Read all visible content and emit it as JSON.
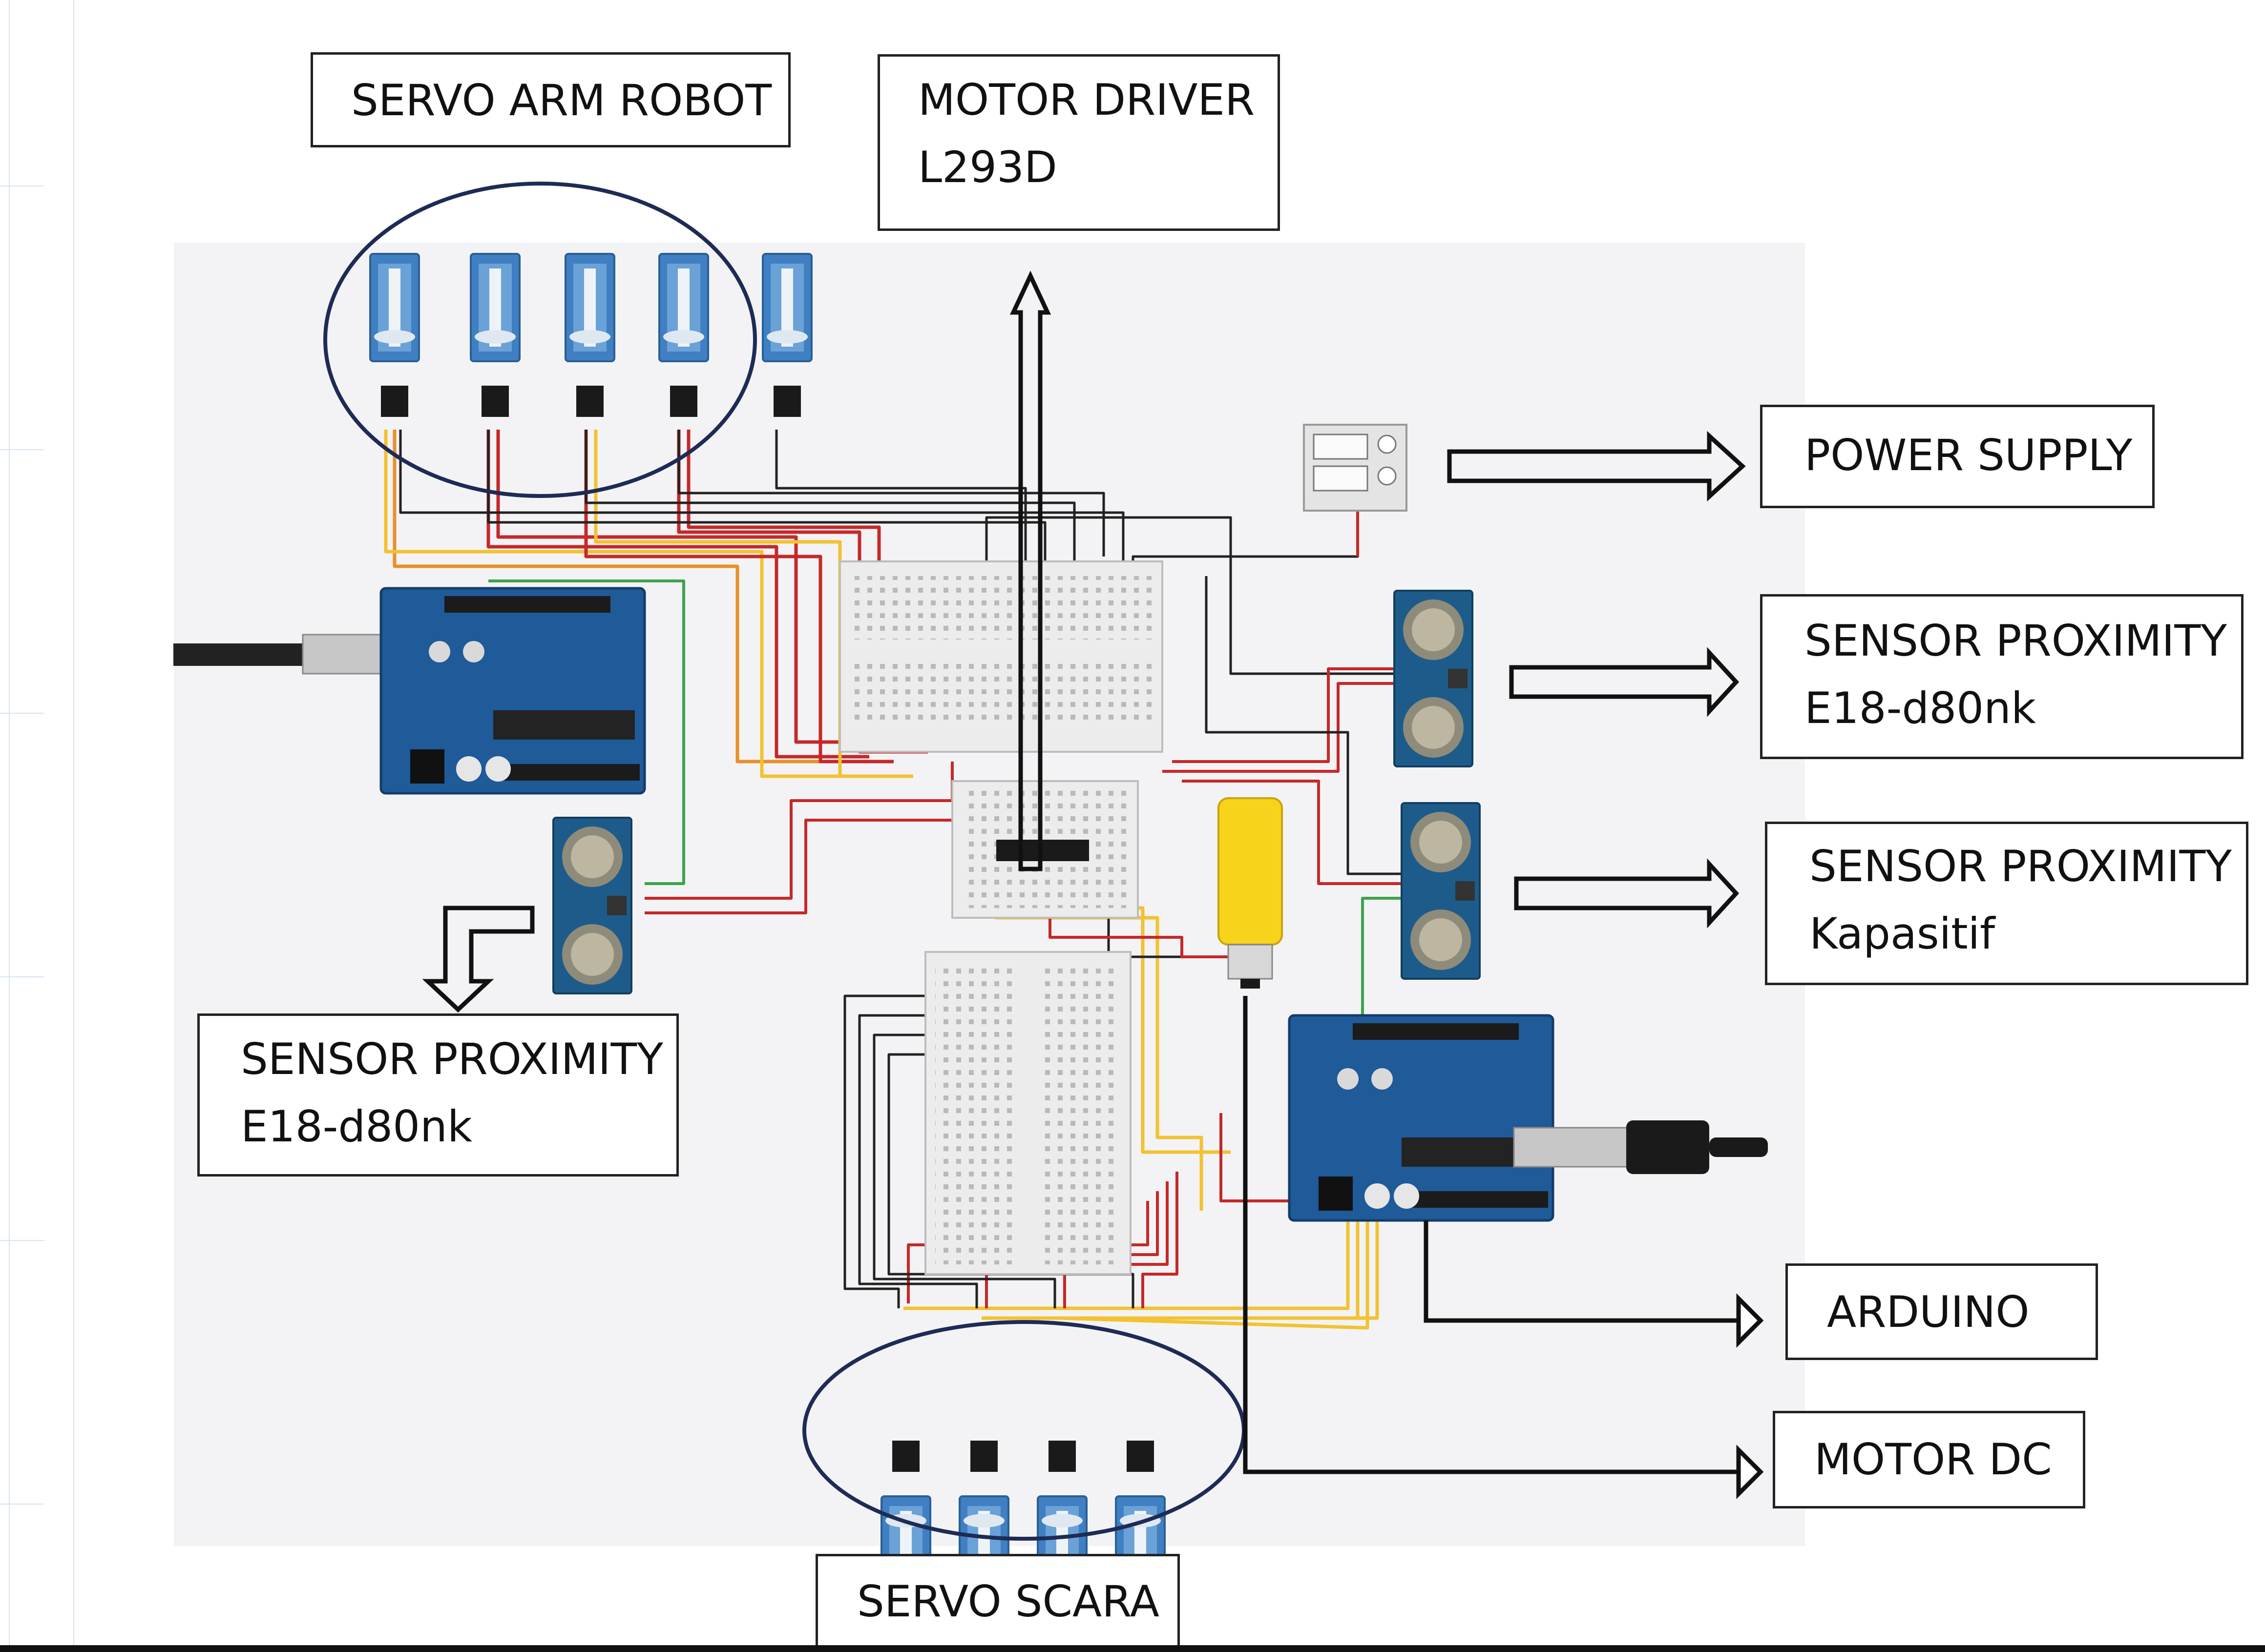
{
  "labels": {
    "servo_arm_robot": "SERVO ARM ROBOT",
    "motor_driver": [
      "MOTOR DRIVER",
      "L293D"
    ],
    "power_supply": "POWER SUPPLY",
    "sensor_proximity_right": [
      "SENSOR PROXIMITY",
      "E18-d80nk"
    ],
    "sensor_proximity_kapasitif": [
      "SENSOR PROXIMITY",
      "Kapasitif"
    ],
    "sensor_proximity_left": [
      "SENSOR PROXIMITY",
      "E18-d80nk"
    ],
    "arduino": "ARDUINO",
    "motor_dc": "MOTOR DC",
    "servo_scara": "SERVO SCARA"
  },
  "colors": {
    "arduino_board": "#1f5a99",
    "servo_body": "#3f7fc2",
    "sensor_board": "#1d5c8a",
    "wire_red": "#c62828",
    "wire_yellow": "#f2c230",
    "wire_orange": "#e8902a",
    "wire_black": "#222222",
    "wire_green": "#3fa34d",
    "motor_yellow": "#f7d31c"
  },
  "icons": {
    "arm_servos": "servo-motor-icon",
    "scara_servos": "servo-motor-icon",
    "sensors": "ultrasonic-sensor-icon",
    "boards": "arduino-uno-icon",
    "breadboards": "breadboard-icon",
    "motor": "dc-motor-icon",
    "power": "power-supply-icon"
  }
}
